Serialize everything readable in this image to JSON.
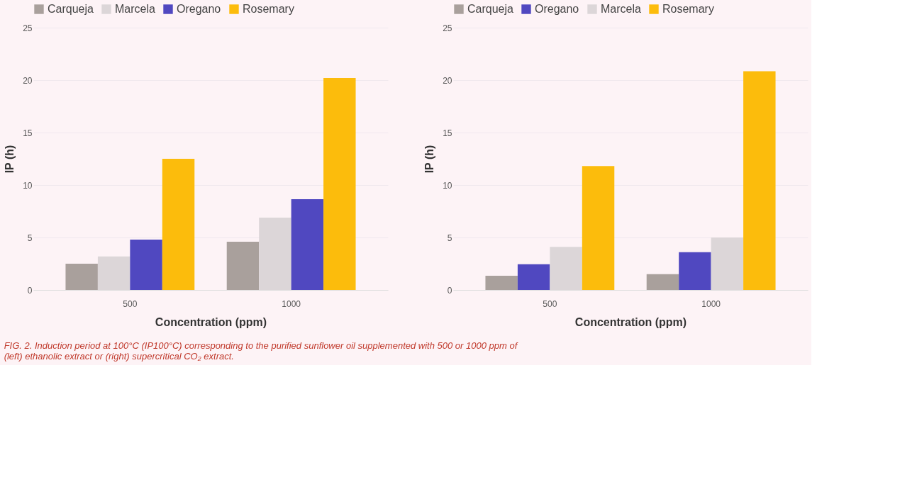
{
  "chart_data": [
    {
      "type": "bar",
      "categories": [
        "500",
        "1000"
      ],
      "xlabel": "Concentration (ppm)",
      "ylabel": "IP (h)",
      "ylim": [
        0,
        25
      ],
      "yticks": [
        0,
        5,
        10,
        15,
        20,
        25
      ],
      "grid": "y",
      "legend": "top",
      "series": [
        {
          "name": "Carqueja",
          "color": "#a9a09c",
          "values": [
            2.5,
            4.6
          ]
        },
        {
          "name": "Marcela",
          "color": "#dcd6d8",
          "values": [
            3.2,
            6.9
          ]
        },
        {
          "name": "Oregano",
          "color": "#5048c0",
          "values": [
            4.8,
            8.65
          ]
        },
        {
          "name": "Rosemary",
          "color": "#fcbc0c",
          "values": [
            12.5,
            20.2
          ]
        }
      ]
    },
    {
      "type": "bar",
      "categories": [
        "500",
        "1000"
      ],
      "xlabel": "Concentration (ppm)",
      "ylabel": "IP (h)",
      "ylim": [
        0,
        25
      ],
      "yticks": [
        0,
        5,
        10,
        15,
        20,
        25
      ],
      "grid": "y",
      "legend": "top",
      "series": [
        {
          "name": "Carqueja",
          "color": "#a9a09c",
          "values": [
            1.35,
            1.5
          ]
        },
        {
          "name": "Oregano",
          "color": "#5048c0",
          "values": [
            2.45,
            3.6
          ]
        },
        {
          "name": "Marcela",
          "color": "#dcd6d8",
          "values": [
            4.1,
            5.0
          ]
        },
        {
          "name": "Rosemary",
          "color": "#fcbc0c",
          "values": [
            11.8,
            20.85
          ]
        }
      ],
      "annotations": [
        "FIG. 2. Induction period at 100°C (IP100°C) corresponding to the purified sunflower oil supplemented with 500 or 1000 ppm of (left)  ethanolic extract or (right)  supercritical CO₂ extract."
      ]
    }
  ]
}
